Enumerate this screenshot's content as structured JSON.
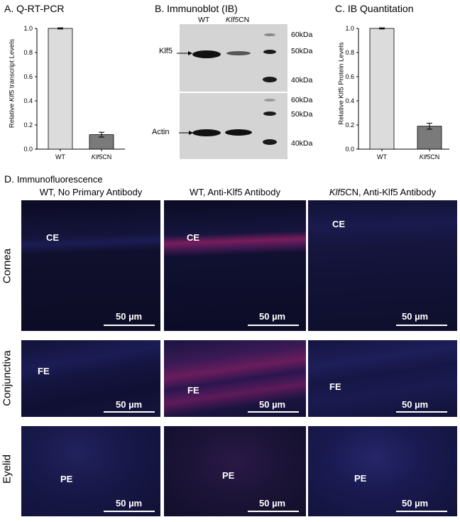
{
  "panel_a": {
    "letter": "A.",
    "title": "Q-RT-PCR",
    "ylabel_pre": "Relative ",
    "ylabel_italic": "Klf5",
    "ylabel_post": " transcript Levels"
  },
  "panel_b": {
    "letter": "B.",
    "title": "Immunoblot (IB)",
    "lane_wt": "WT",
    "lane_cn_italic": "Klf5",
    "lane_cn_suffix": "CN",
    "klf5_label": "Klf5",
    "actin_label": "Actin",
    "markers_top": [
      "60kDa",
      "50kDa",
      "40kDa"
    ],
    "markers_bottom": [
      "60kDa",
      "50kDa",
      "40kDa"
    ]
  },
  "panel_c": {
    "letter": "C.",
    "title": "IB Quantitation",
    "ylabel": "Relative Klf5 Protein Levels"
  },
  "panel_d": {
    "letter": "D.",
    "title": "Immunofluorescence",
    "col1": "WT, No Primary Antibody",
    "col2": "WT, Anti-Klf5 Antibody",
    "col3_italic": "Klf5",
    "col3_rest": "CN, Anti-Klf5 Antibody",
    "rows": [
      "Cornea",
      "Conjunctiva",
      "Eyelid"
    ],
    "tags": [
      "CE",
      "FE",
      "PE"
    ],
    "scalebar": "50 µm"
  },
  "chart_data": [
    {
      "type": "bar",
      "title": "Q-RT-PCR",
      "categories": [
        "WT",
        "Klf5CN"
      ],
      "values": [
        1.0,
        0.12
      ],
      "errors": [
        0.005,
        0.02
      ],
      "ylabel": "Relative Klf5 transcript Levels",
      "ylim": [
        0,
        1.0
      ],
      "yticks": [
        "0.0",
        "0.2",
        "0.4",
        "0.6",
        "0.8",
        "1.0"
      ],
      "colors": [
        "#dcdcdc",
        "#7a7a7a"
      ]
    },
    {
      "type": "bar",
      "title": "IB Quantitation",
      "categories": [
        "WT",
        "Klf5CN"
      ],
      "values": [
        1.0,
        0.19
      ],
      "errors": [
        0.005,
        0.025
      ],
      "ylabel": "Relative Klf5 Protein Levels",
      "ylim": [
        0,
        1.0
      ],
      "yticks": [
        "0.0",
        "0.2",
        "0.4",
        "0.6",
        "0.8",
        "1.0"
      ],
      "colors": [
        "#dcdcdc",
        "#7a7a7a"
      ]
    }
  ]
}
